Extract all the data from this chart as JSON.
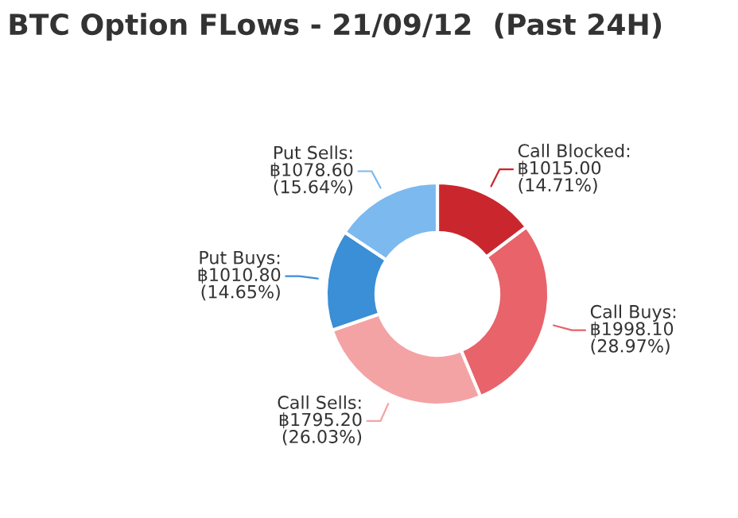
{
  "chart_data": {
    "type": "donut",
    "title": "BTC Option FLows - 21/09/12  (Past 24H)",
    "categories": [
      "Call Blocked",
      "Call Buys",
      "Call Sells",
      "Put Buys",
      "Put Sells"
    ],
    "values": [
      1015.0,
      1998.1,
      1795.2,
      1010.8,
      1078.6
    ],
    "value_labels": [
      ":\n฿1015.00\n(14.71%)",
      ":\n฿1998.10\n(28.97%)",
      ":\n฿1795.20\n(26.03%)",
      ":\n฿1010.80\n(14.65%)",
      ":\n฿1078.60\n(15.64%)"
    ],
    "colors": [
      "#c9272d",
      "#e8636a",
      "#f4a3a5",
      "#3a8fd6",
      "#7cb9ee"
    ],
    "legend": false
  }
}
